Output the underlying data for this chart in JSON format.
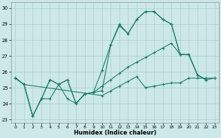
{
  "xlabel": "Humidex (Indice chaleur)",
  "background_color": "#cce8e8",
  "grid_color": "#aacccc",
  "line_color": "#1a7a6a",
  "xlim": [
    -0.5,
    23.5
  ],
  "ylim": [
    22.8,
    30.4
  ],
  "yticks": [
    23,
    24,
    25,
    26,
    27,
    28,
    29,
    30
  ],
  "xticks": [
    0,
    1,
    2,
    3,
    4,
    5,
    6,
    7,
    8,
    9,
    10,
    11,
    12,
    13,
    14,
    15,
    16,
    17,
    18,
    19,
    20,
    21,
    22,
    23
  ],
  "series1_y": [
    25.6,
    25.2,
    23.2,
    24.3,
    25.5,
    25.2,
    25.5,
    24.0,
    24.6,
    24.7,
    24.8,
    27.7,
    28.9,
    28.4,
    29.3,
    29.8,
    29.8,
    29.3,
    29.0,
    27.1,
    27.1,
    25.8,
    25.5,
    null
  ],
  "series2_y": [
    25.6,
    25.2,
    23.2,
    24.3,
    25.5,
    25.2,
    25.5,
    24.0,
    24.6,
    24.7,
    26.1,
    27.7,
    29.0,
    28.4,
    29.3,
    29.8,
    29.8,
    29.3,
    29.0,
    27.1,
    27.1,
    25.8,
    25.5,
    null
  ],
  "series3_y": [
    25.6,
    25.2,
    23.2,
    24.3,
    24.3,
    25.2,
    24.3,
    24.0,
    24.6,
    24.7,
    25.1,
    25.5,
    25.9,
    26.3,
    26.6,
    26.9,
    27.2,
    27.5,
    27.8,
    27.1,
    27.1,
    25.8,
    25.5,
    25.6
  ],
  "series4_y": [
    25.6,
    25.2,
    null,
    null,
    null,
    null,
    null,
    null,
    null,
    null,
    24.5,
    24.8,
    25.1,
    25.4,
    25.7,
    25.0,
    25.1,
    25.2,
    25.3,
    25.3,
    25.6,
    25.6,
    25.6,
    25.6
  ]
}
